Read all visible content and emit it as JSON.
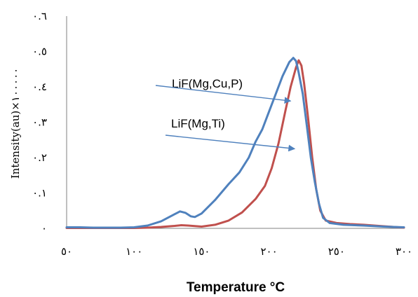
{
  "chart_data": {
    "type": "line",
    "xlabel": "Temperature °C",
    "ylabel": "Intensity(au)×١٠٠٠٠٠",
    "xlim": [
      50,
      300
    ],
    "ylim": [
      0,
      0.6
    ],
    "x_ticks": [
      50,
      100,
      150,
      200,
      250,
      300
    ],
    "x_tick_labels": [
      "٥٠",
      "١٠٠",
      "١٥٠",
      "٢٠٠",
      "٢٥٠",
      "٣٠٠"
    ],
    "y_ticks": [
      0,
      0.1,
      0.2,
      0.3,
      0.4,
      0.5,
      0.6
    ],
    "y_tick_labels": [
      "٠",
      "٠.١",
      "٠.٢",
      "٠.٣",
      "٠.٤",
      "٠.٥",
      "٠.٦"
    ],
    "grid": false,
    "legend": "none",
    "series": [
      {
        "name": "LiF(Mg,Cu,P)",
        "color": "#4f81bd",
        "points": [
          [
            50,
            0.003
          ],
          [
            60,
            0.003
          ],
          [
            70,
            0.002
          ],
          [
            80,
            0.002
          ],
          [
            90,
            0.002
          ],
          [
            100,
            0.003
          ],
          [
            110,
            0.008
          ],
          [
            120,
            0.02
          ],
          [
            130,
            0.04
          ],
          [
            134,
            0.048
          ],
          [
            138,
            0.044
          ],
          [
            142,
            0.034
          ],
          [
            145,
            0.032
          ],
          [
            150,
            0.042
          ],
          [
            160,
            0.08
          ],
          [
            170,
            0.125
          ],
          [
            178,
            0.158
          ],
          [
            185,
            0.2
          ],
          [
            190,
            0.245
          ],
          [
            195,
            0.28
          ],
          [
            200,
            0.33
          ],
          [
            205,
            0.38
          ],
          [
            210,
            0.43
          ],
          [
            215,
            0.47
          ],
          [
            218,
            0.482
          ],
          [
            220,
            0.473
          ],
          [
            222,
            0.44
          ],
          [
            225,
            0.38
          ],
          [
            228,
            0.29
          ],
          [
            231,
            0.2
          ],
          [
            234,
            0.13
          ],
          [
            237,
            0.07
          ],
          [
            240,
            0.03
          ],
          [
            245,
            0.015
          ],
          [
            255,
            0.01
          ],
          [
            270,
            0.008
          ],
          [
            285,
            0.005
          ],
          [
            300,
            0.003
          ]
        ]
      },
      {
        "name": "LiF(Mg,Ti)",
        "color": "#c0504d",
        "points": [
          [
            50,
            0.001
          ],
          [
            60,
            0.001
          ],
          [
            70,
            0.001
          ],
          [
            80,
            0.001
          ],
          [
            90,
            0.001
          ],
          [
            100,
            0.001
          ],
          [
            110,
            0.002
          ],
          [
            120,
            0.004
          ],
          [
            130,
            0.007
          ],
          [
            135,
            0.009
          ],
          [
            140,
            0.008
          ],
          [
            150,
            0.005
          ],
          [
            160,
            0.01
          ],
          [
            170,
            0.022
          ],
          [
            180,
            0.045
          ],
          [
            190,
            0.083
          ],
          [
            197,
            0.12
          ],
          [
            202,
            0.17
          ],
          [
            207,
            0.24
          ],
          [
            212,
            0.33
          ],
          [
            216,
            0.4
          ],
          [
            220,
            0.455
          ],
          [
            222,
            0.475
          ],
          [
            224,
            0.46
          ],
          [
            226,
            0.41
          ],
          [
            229,
            0.31
          ],
          [
            232,
            0.2
          ],
          [
            235,
            0.11
          ],
          [
            238,
            0.05
          ],
          [
            242,
            0.022
          ],
          [
            250,
            0.015
          ],
          [
            260,
            0.012
          ],
          [
            270,
            0.01
          ],
          [
            285,
            0.006
          ],
          [
            300,
            0.002
          ]
        ]
      }
    ],
    "annotations": [
      {
        "text": "LiF(Mg,Cu,P)",
        "arrow_to_x": 216,
        "arrow_to_y": 0.36
      },
      {
        "text": "LiF(Mg,Ti)",
        "arrow_to_x": 219,
        "arrow_to_y": 0.225
      }
    ]
  }
}
